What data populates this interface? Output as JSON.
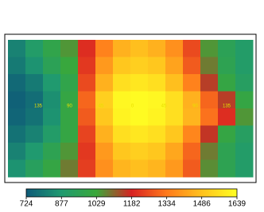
{
  "chart_data": {
    "type": "heatmap",
    "colormap": [
      "#0e5a78",
      "#1f9a70",
      "#3aa83a",
      "#d82222",
      "#ff7a1c",
      "#ffc21e",
      "#ffff22"
    ],
    "inner_labels": [
      "135",
      "90",
      "45",
      "0",
      "45",
      "90",
      "135"
    ],
    "zlim": [
      724,
      1639
    ],
    "zticks": [
      724,
      877,
      1029,
      1182,
      1334,
      1486,
      1639
    ],
    "values": [
      [
        820,
        900,
        980,
        1050,
        1200,
        1350,
        1450,
        1480,
        1450,
        1380,
        1250,
        1050,
        950,
        900
      ],
      [
        800,
        860,
        950,
        1020,
        1220,
        1400,
        1500,
        1520,
        1500,
        1420,
        1280,
        1080,
        960,
        900
      ],
      [
        760,
        800,
        880,
        980,
        1250,
        1450,
        1560,
        1580,
        1560,
        1480,
        1350,
        1150,
        1000,
        920
      ],
      [
        740,
        770,
        850,
        1000,
        1300,
        1520,
        1620,
        1630,
        1620,
        1560,
        1450,
        1300,
        1150,
        1000
      ],
      [
        750,
        780,
        860,
        1000,
        1280,
        1500,
        1610,
        1630,
        1610,
        1560,
        1460,
        1320,
        1200,
        1050
      ],
      [
        780,
        820,
        900,
        1000,
        1240,
        1450,
        1560,
        1580,
        1560,
        1500,
        1360,
        1160,
        1000,
        920
      ],
      [
        820,
        880,
        960,
        1050,
        1220,
        1400,
        1500,
        1520,
        1500,
        1430,
        1300,
        1080,
        960,
        900
      ],
      [
        860,
        930,
        1000,
        1080,
        1230,
        1380,
        1460,
        1480,
        1460,
        1400,
        1280,
        1060,
        960,
        900
      ]
    ]
  }
}
